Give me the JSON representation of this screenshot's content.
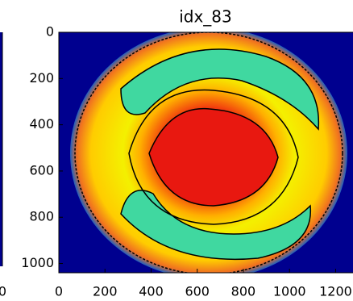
{
  "chart_data": {
    "type": "image",
    "title": "idx_83",
    "xlim": [
      0,
      1392
    ],
    "ylim": [
      0,
      1040
    ],
    "y_inverted": true,
    "xticks": [
      0,
      200,
      400,
      600,
      800,
      1000,
      1200
    ],
    "yticks": [
      0,
      200,
      400,
      600,
      800,
      1000
    ],
    "colormap": "jet",
    "contours": true,
    "previous_panel_xtick": 0
  }
}
